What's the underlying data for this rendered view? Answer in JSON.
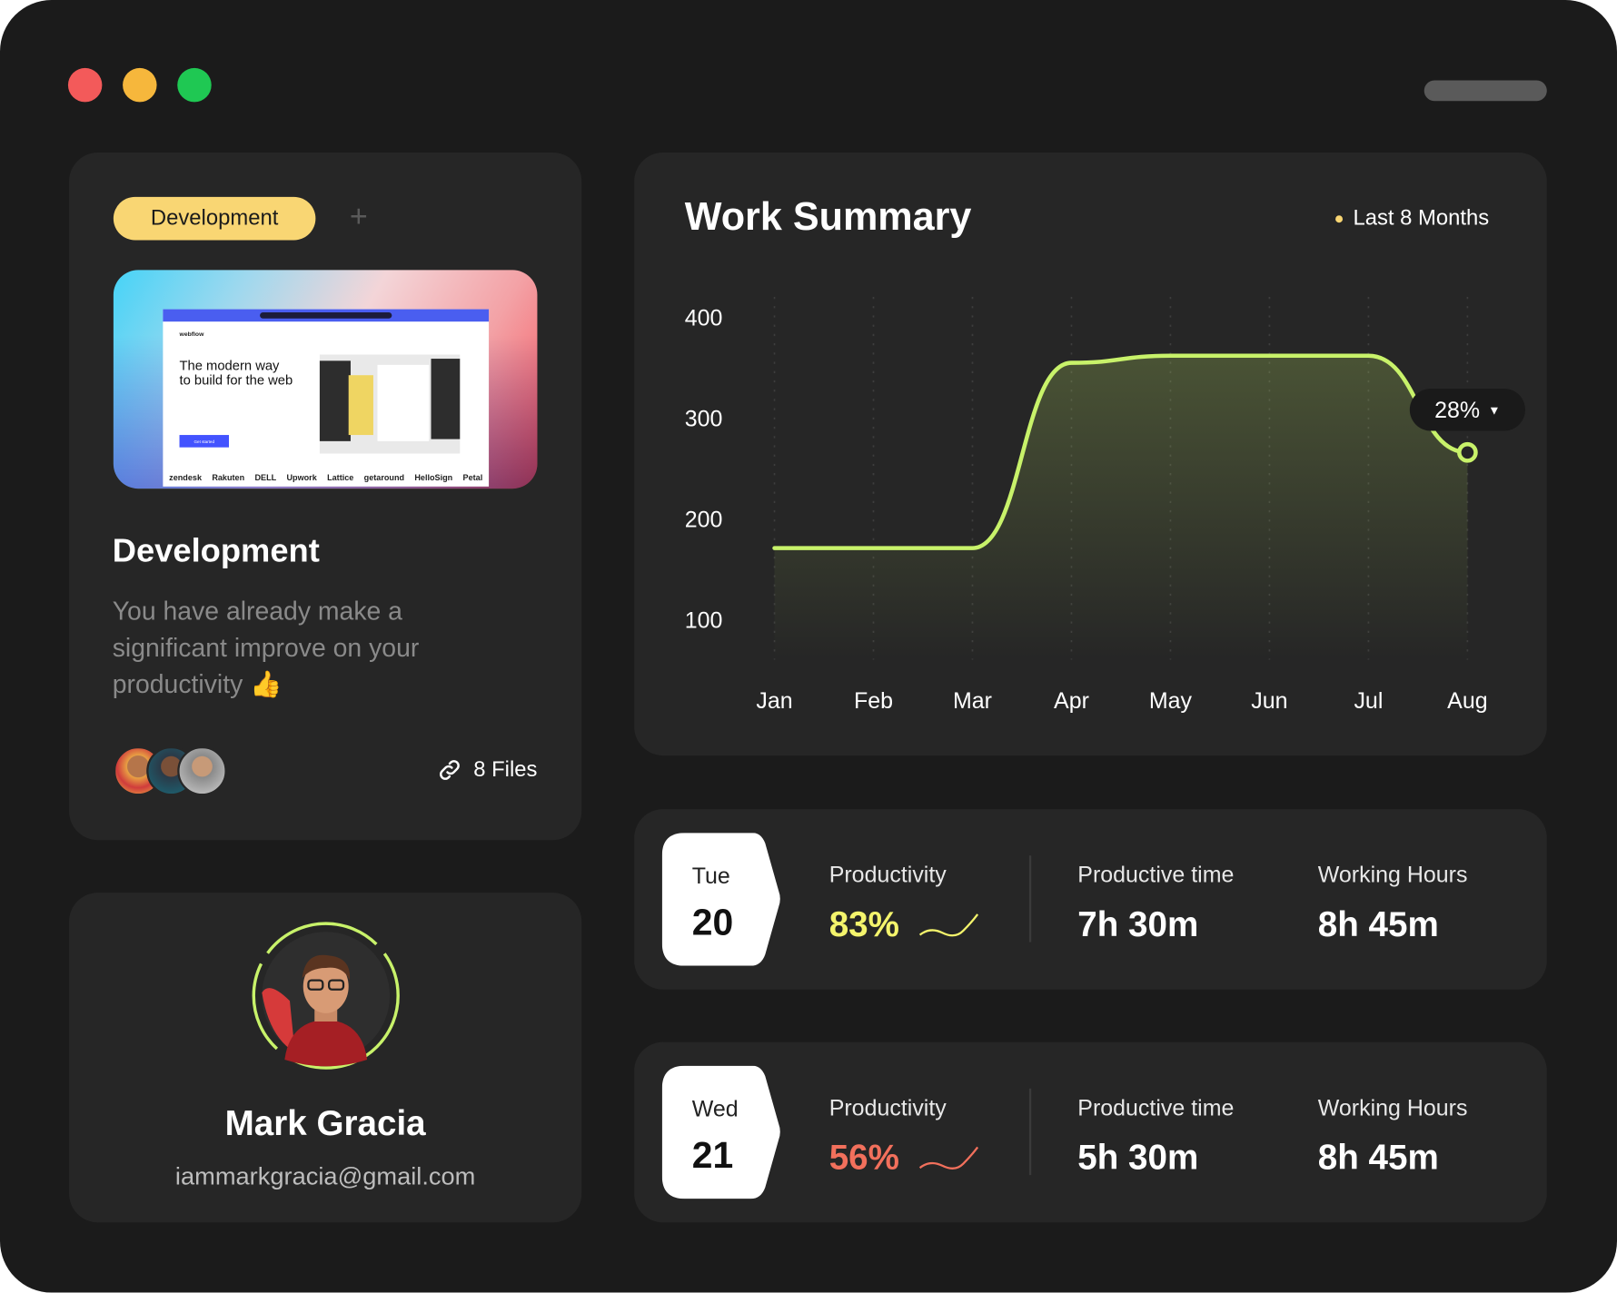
{
  "window": {
    "controls": [
      "close",
      "minimize",
      "maximize"
    ],
    "colors": {
      "close": "#f35a5a",
      "minimize": "#f6b73c",
      "maximize": "#1fc853"
    }
  },
  "project": {
    "tag": "Development",
    "add_label": "+",
    "preview": {
      "brand": "webflow",
      "headline": "The modern way to build for the web",
      "cta": "Get started",
      "logos": [
        "zendesk",
        "Rakuten",
        "DELL",
        "Upwork",
        "Lattice",
        "getaround",
        "HelloSign",
        "Petal"
      ]
    },
    "title": "Development",
    "description": "You have already make a significant improve on your productivity 👍",
    "files": "8 Files"
  },
  "profile": {
    "name": "Mark Gracia",
    "email": "iammarkgracia@gmail.com"
  },
  "chart_data": {
    "type": "area",
    "title": "Work Summary",
    "range_label": "Last 8 Months",
    "categories": [
      "Jan",
      "Feb",
      "Mar",
      "Apr",
      "May",
      "Jun",
      "Jul",
      "Aug"
    ],
    "values": [
      171,
      171,
      171,
      355,
      362,
      362,
      362,
      266
    ],
    "yticks": [
      400,
      300,
      200,
      100
    ],
    "ylim": [
      100,
      400
    ],
    "tooltip": "28%",
    "accent": "#c8f26a"
  },
  "days": [
    {
      "weekday": "Tue",
      "day": "20",
      "productivity_label": "Productivity",
      "productivity": "83%",
      "productivity_color": "#f4f46c",
      "time_label": "Productive time",
      "time": "7h 30m",
      "hours_label": "Working Hours",
      "hours": "8h 45m"
    },
    {
      "weekday": "Wed",
      "day": "21",
      "productivity_label": "Productivity",
      "productivity": "56%",
      "productivity_color": "#f2705c",
      "time_label": "Productive time",
      "time": "5h 30m",
      "hours_label": "Working Hours",
      "hours": "8h 45m"
    }
  ]
}
